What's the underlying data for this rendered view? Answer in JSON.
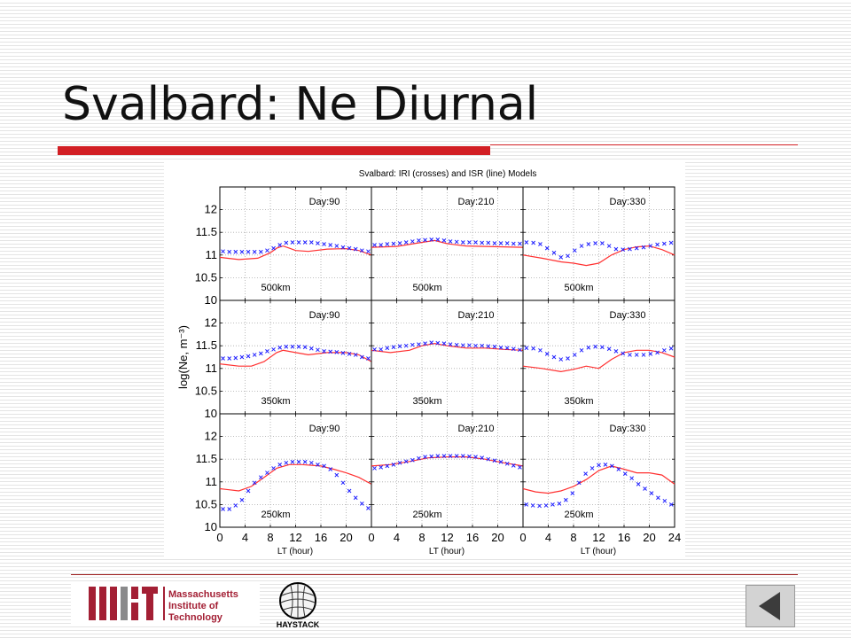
{
  "slide": {
    "title": "Svalbard: Ne Diurnal"
  },
  "logos": {
    "mit_lines": [
      "Massachusetts",
      "Institute of",
      "Technology"
    ],
    "haystack": "HAYSTACK"
  },
  "nav": {
    "back_icon": "triangle-left-icon"
  },
  "colors": {
    "accent": "#d21f24",
    "iri": "#1f1fff",
    "isr": "#ff3030"
  },
  "chart_data": {
    "type": "line",
    "title": "Svalbard: IRI (crosses) and ISR (line) Models",
    "xlabel": "LT (hour)",
    "ylabel": "log(Ne, m⁻³)",
    "xlim": [
      0,
      24
    ],
    "ylim": [
      10,
      12.5
    ],
    "xticks": [
      0,
      4,
      8,
      12,
      16,
      20,
      24
    ],
    "xtick_labels": [
      "0",
      "4",
      "8",
      "12",
      "16",
      "20",
      "24"
    ],
    "ytick_labels": [
      "10",
      "10.5",
      "11",
      "11.5",
      "12"
    ],
    "grid": true,
    "panels": [
      {
        "label": "Day:90",
        "altitude": "500km",
        "row": 0,
        "col": 0,
        "iri": [
          11.08,
          11.07,
          11.07,
          11.07,
          11.07,
          11.07,
          11.07,
          11.1,
          11.15,
          11.22,
          11.27,
          11.28,
          11.28,
          11.28,
          11.28,
          11.26,
          11.24,
          11.22,
          11.2,
          11.17,
          11.15,
          11.13,
          11.1,
          11.08
        ],
        "isr": [
          [
            0,
            10.95
          ],
          [
            3,
            10.9
          ],
          [
            6,
            10.93
          ],
          [
            8,
            11.05
          ],
          [
            9,
            11.15
          ],
          [
            10,
            11.2
          ],
          [
            11,
            11.15
          ],
          [
            12,
            11.1
          ],
          [
            14,
            11.08
          ],
          [
            17,
            11.13
          ],
          [
            20,
            11.14
          ],
          [
            22,
            11.1
          ],
          [
            24,
            11.0
          ]
        ]
      },
      {
        "label": "Day:210",
        "altitude": "500km",
        "row": 0,
        "col": 1,
        "iri": [
          11.22,
          11.22,
          11.24,
          11.25,
          11.26,
          11.28,
          11.3,
          11.32,
          11.33,
          11.34,
          11.34,
          11.32,
          11.3,
          11.29,
          11.28,
          11.28,
          11.28,
          11.27,
          11.27,
          11.26,
          11.26,
          11.26,
          11.25,
          11.25
        ],
        "isr": [
          [
            0,
            11.17
          ],
          [
            4,
            11.19
          ],
          [
            8,
            11.28
          ],
          [
            10,
            11.32
          ],
          [
            12,
            11.25
          ],
          [
            15,
            11.2
          ],
          [
            18,
            11.19
          ],
          [
            21,
            11.18
          ],
          [
            24,
            11.17
          ]
        ]
      },
      {
        "label": "Day:330",
        "altitude": "500km",
        "row": 0,
        "col": 2,
        "iri": [
          11.28,
          11.27,
          11.24,
          11.15,
          11.05,
          10.95,
          10.98,
          11.1,
          11.2,
          11.24,
          11.26,
          11.26,
          11.2,
          11.13,
          11.12,
          11.13,
          11.15,
          11.17,
          11.2,
          11.23,
          11.25,
          11.27
        ],
        "isr": [
          [
            0,
            11.0
          ],
          [
            3,
            10.93
          ],
          [
            6,
            10.85
          ],
          [
            8,
            10.82
          ],
          [
            10,
            10.77
          ],
          [
            12,
            10.82
          ],
          [
            14,
            11.0
          ],
          [
            16,
            11.12
          ],
          [
            18,
            11.18
          ],
          [
            20,
            11.2
          ],
          [
            22,
            11.12
          ],
          [
            24,
            11.0
          ]
        ]
      },
      {
        "label": "Day:90",
        "altitude": "350km",
        "row": 1,
        "col": 0,
        "iri": [
          11.22,
          11.22,
          11.23,
          11.25,
          11.27,
          11.3,
          11.33,
          11.38,
          11.42,
          11.46,
          11.48,
          11.48,
          11.48,
          11.47,
          11.44,
          11.41,
          11.38,
          11.37,
          11.36,
          11.34,
          11.32,
          11.3,
          11.25,
          11.22
        ],
        "isr": [
          [
            0,
            11.1
          ],
          [
            3,
            11.05
          ],
          [
            5,
            11.05
          ],
          [
            7,
            11.15
          ],
          [
            9,
            11.35
          ],
          [
            10,
            11.4
          ],
          [
            12,
            11.35
          ],
          [
            14,
            11.3
          ],
          [
            17,
            11.35
          ],
          [
            20,
            11.35
          ],
          [
            22,
            11.3
          ],
          [
            24,
            11.15
          ]
        ]
      },
      {
        "label": "Day:210",
        "altitude": "350km",
        "row": 1,
        "col": 1,
        "iri": [
          11.42,
          11.42,
          11.45,
          11.47,
          11.49,
          11.5,
          11.52,
          11.53,
          11.55,
          11.57,
          11.56,
          11.55,
          11.53,
          11.52,
          11.51,
          11.51,
          11.5,
          11.5,
          11.49,
          11.48,
          11.46,
          11.45,
          11.43,
          11.41
        ],
        "isr": [
          [
            0,
            11.4
          ],
          [
            3,
            11.35
          ],
          [
            6,
            11.4
          ],
          [
            8,
            11.5
          ],
          [
            10,
            11.55
          ],
          [
            12,
            11.5
          ],
          [
            15,
            11.45
          ],
          [
            18,
            11.45
          ],
          [
            21,
            11.42
          ],
          [
            24,
            11.4
          ]
        ]
      },
      {
        "label": "Day:330",
        "altitude": "350km",
        "row": 1,
        "col": 2,
        "iri": [
          11.45,
          11.44,
          11.4,
          11.32,
          11.25,
          11.2,
          11.22,
          11.3,
          11.4,
          11.46,
          11.48,
          11.47,
          11.43,
          11.38,
          11.33,
          11.3,
          11.3,
          11.3,
          11.32,
          11.35,
          11.4,
          11.44
        ],
        "isr": [
          [
            0,
            11.05
          ],
          [
            3,
            11.0
          ],
          [
            6,
            10.93
          ],
          [
            8,
            10.98
          ],
          [
            10,
            11.05
          ],
          [
            12,
            11.0
          ],
          [
            14,
            11.2
          ],
          [
            16,
            11.35
          ],
          [
            18,
            11.4
          ],
          [
            20,
            11.4
          ],
          [
            22,
            11.35
          ],
          [
            24,
            11.25
          ]
        ]
      },
      {
        "label": "Day:90",
        "altitude": "250km",
        "row": 2,
        "col": 0,
        "iri": [
          10.4,
          10.4,
          10.48,
          10.6,
          10.8,
          10.98,
          11.1,
          11.2,
          11.3,
          11.38,
          11.42,
          11.44,
          11.44,
          11.44,
          11.42,
          11.38,
          11.35,
          11.28,
          11.15,
          10.98,
          10.8,
          10.65,
          10.52,
          10.42
        ],
        "isr": [
          [
            0,
            10.85
          ],
          [
            3,
            10.8
          ],
          [
            5,
            10.9
          ],
          [
            7,
            11.1
          ],
          [
            9,
            11.3
          ],
          [
            11,
            11.38
          ],
          [
            13,
            11.38
          ],
          [
            16,
            11.35
          ],
          [
            18,
            11.28
          ],
          [
            20,
            11.2
          ],
          [
            22,
            11.1
          ],
          [
            24,
            10.95
          ]
        ]
      },
      {
        "label": "Day:210",
        "altitude": "250km",
        "row": 2,
        "col": 1,
        "iri": [
          11.3,
          11.32,
          11.35,
          11.38,
          11.42,
          11.45,
          11.48,
          11.52,
          11.55,
          11.56,
          11.57,
          11.57,
          11.57,
          11.57,
          11.57,
          11.56,
          11.55,
          11.53,
          11.5,
          11.47,
          11.44,
          11.4,
          11.36,
          11.32
        ],
        "isr": [
          [
            0,
            11.35
          ],
          [
            3,
            11.38
          ],
          [
            6,
            11.45
          ],
          [
            9,
            11.53
          ],
          [
            12,
            11.55
          ],
          [
            15,
            11.55
          ],
          [
            18,
            11.5
          ],
          [
            21,
            11.42
          ],
          [
            24,
            11.35
          ]
        ]
      },
      {
        "label": "Day:330",
        "altitude": "250km",
        "row": 2,
        "col": 2,
        "iri": [
          10.5,
          10.48,
          10.47,
          10.48,
          10.5,
          10.52,
          10.6,
          10.75,
          10.98,
          11.18,
          11.3,
          11.37,
          11.38,
          11.35,
          11.28,
          11.18,
          11.08,
          10.95,
          10.85,
          10.75,
          10.65,
          10.58,
          10.5
        ],
        "isr": [
          [
            0,
            10.85
          ],
          [
            2,
            10.78
          ],
          [
            4,
            10.75
          ],
          [
            6,
            10.8
          ],
          [
            8,
            10.9
          ],
          [
            10,
            11.05
          ],
          [
            12,
            11.25
          ],
          [
            14,
            11.35
          ],
          [
            16,
            11.28
          ],
          [
            18,
            11.2
          ],
          [
            20,
            11.2
          ],
          [
            22,
            11.15
          ],
          [
            24,
            10.95
          ]
        ]
      }
    ]
  }
}
